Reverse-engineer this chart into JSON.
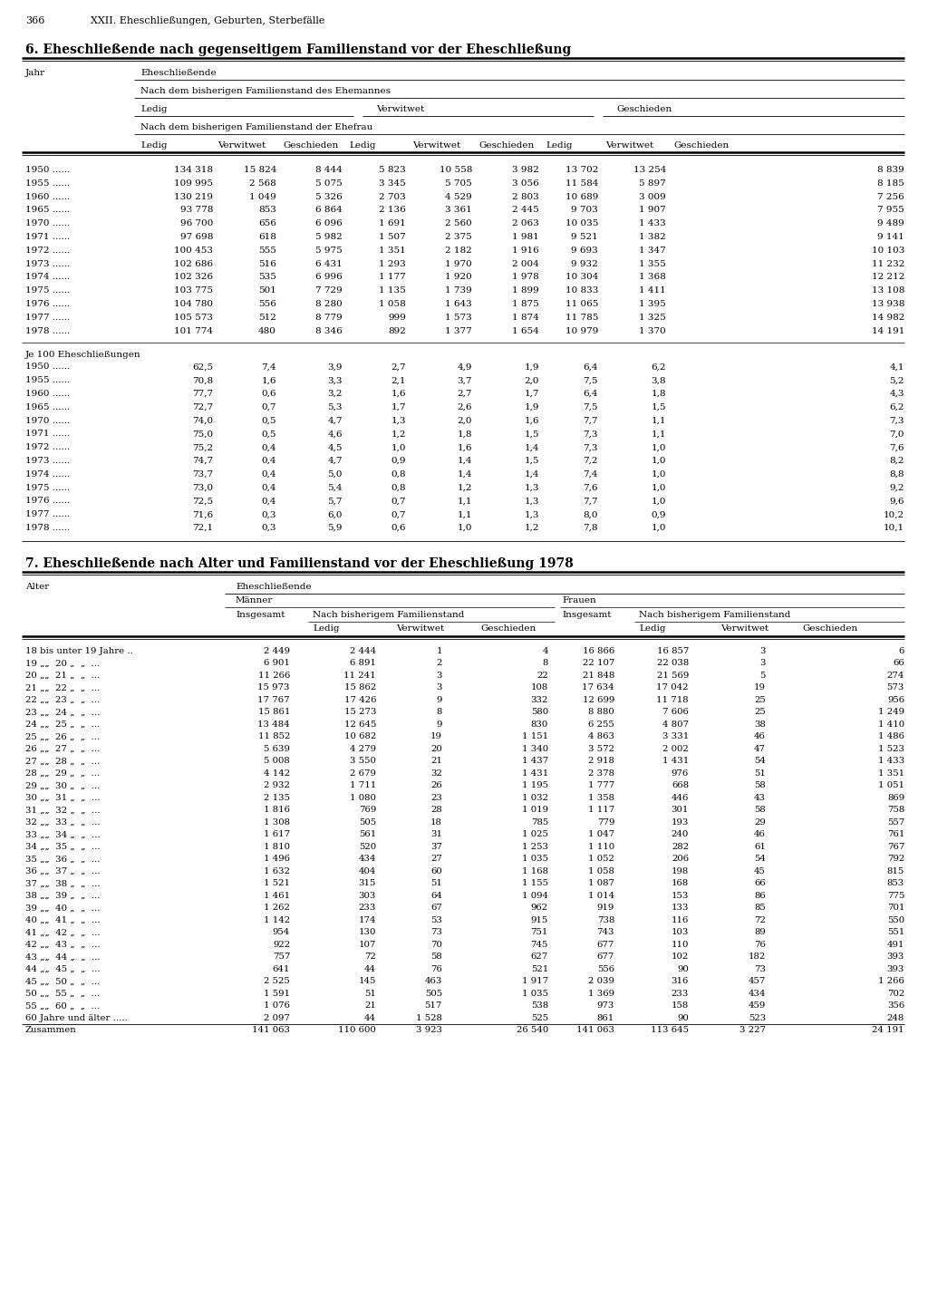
{
  "page_number": "366",
  "page_header": "XXII. Eheschließungen, Geburten, Sterbefälle",
  "table1_title": "6. Eheschließende nach gegenseitigem Familienstand vor der Eheschließung",
  "table1_years": [
    "1950",
    "1955",
    "1960",
    "1965",
    "1970",
    "1971",
    "1972",
    "1973",
    "1974",
    "1975",
    "1976",
    "1977",
    "1978"
  ],
  "table1_data": [
    [
      "134 318",
      "15 824",
      "8 444",
      "5 823",
      "10 558",
      "3 982",
      "13 702",
      "13 254",
      "8 839"
    ],
    [
      "109 995",
      "2 568",
      "5 075",
      "3 345",
      "5 705",
      "3 056",
      "11 584",
      "5 897",
      "8 185"
    ],
    [
      "130 219",
      "1 049",
      "5 326",
      "2 703",
      "4 529",
      "2 803",
      "10 689",
      "3 009",
      "7 256"
    ],
    [
      "93 778",
      "853",
      "6 864",
      "2 136",
      "3 361",
      "2 445",
      "9 703",
      "1 907",
      "7 955"
    ],
    [
      "96 700",
      "656",
      "6 096",
      "1 691",
      "2 560",
      "2 063",
      "10 035",
      "1 433",
      "9 489"
    ],
    [
      "97 698",
      "618",
      "5 982",
      "1 507",
      "2 375",
      "1 981",
      "9 521",
      "1 382",
      "9 141"
    ],
    [
      "100 453",
      "555",
      "5 975",
      "1 351",
      "2 182",
      "1 916",
      "9 693",
      "1 347",
      "10 103"
    ],
    [
      "102 686",
      "516",
      "6 431",
      "1 293",
      "1 970",
      "2 004",
      "9 932",
      "1 355",
      "11 232"
    ],
    [
      "102 326",
      "535",
      "6 996",
      "1 177",
      "1 920",
      "1 978",
      "10 304",
      "1 368",
      "12 212"
    ],
    [
      "103 775",
      "501",
      "7 729",
      "1 135",
      "1 739",
      "1 899",
      "10 833",
      "1 411",
      "13 108"
    ],
    [
      "104 780",
      "556",
      "8 280",
      "1 058",
      "1 643",
      "1 875",
      "11 065",
      "1 395",
      "13 938"
    ],
    [
      "105 573",
      "512",
      "8 779",
      "999",
      "1 573",
      "1 874",
      "11 785",
      "1 325",
      "14 982"
    ],
    [
      "101 774",
      "480",
      "8 346",
      "892",
      "1 377",
      "1 654",
      "10 979",
      "1 370",
      "14 191"
    ]
  ],
  "table1_je100_label": "Je 100 Eheschließungen",
  "table1_je100_data": [
    [
      "62,5",
      "7,4",
      "3,9",
      "2,7",
      "4,9",
      "1,9",
      "6,4",
      "6,2",
      "4,1"
    ],
    [
      "70,8",
      "1,6",
      "3,3",
      "2,1",
      "3,7",
      "2,0",
      "7,5",
      "3,8",
      "5,2"
    ],
    [
      "77,7",
      "0,6",
      "3,2",
      "1,6",
      "2,7",
      "1,7",
      "6,4",
      "1,8",
      "4,3"
    ],
    [
      "72,7",
      "0,7",
      "5,3",
      "1,7",
      "2,6",
      "1,9",
      "7,5",
      "1,5",
      "6,2"
    ],
    [
      "74,0",
      "0,5",
      "4,7",
      "1,3",
      "2,0",
      "1,6",
      "7,7",
      "1,1",
      "7,3"
    ],
    [
      "75,0",
      "0,5",
      "4,6",
      "1,2",
      "1,8",
      "1,5",
      "7,3",
      "1,1",
      "7,0"
    ],
    [
      "75,2",
      "0,4",
      "4,5",
      "1,0",
      "1,6",
      "1,4",
      "7,3",
      "1,0",
      "7,6"
    ],
    [
      "74,7",
      "0,4",
      "4,7",
      "0,9",
      "1,4",
      "1,5",
      "7,2",
      "1,0",
      "8,2"
    ],
    [
      "73,7",
      "0,4",
      "5,0",
      "0,8",
      "1,4",
      "1,4",
      "7,4",
      "1,0",
      "8,8"
    ],
    [
      "73,0",
      "0,4",
      "5,4",
      "0,8",
      "1,2",
      "1,3",
      "7,6",
      "1,0",
      "9,2"
    ],
    [
      "72,5",
      "0,4",
      "5,7",
      "0,7",
      "1,1",
      "1,3",
      "7,7",
      "1,0",
      "9,6"
    ],
    [
      "71,6",
      "0,3",
      "6,0",
      "0,7",
      "1,1",
      "1,3",
      "8,0",
      "0,9",
      "10,2"
    ],
    [
      "72,1",
      "0,3",
      "5,9",
      "0,6",
      "1,0",
      "1,2",
      "7,8",
      "1,0",
      "10,1"
    ]
  ],
  "table2_title": "7. Eheschließende nach Alter und Familienstand vor der Eheschließung 1978",
  "table2_age_rows": [
    [
      "18 bis unter 19 Jahre ..",
      "2 449",
      "2 444",
      "1",
      "4",
      "16 866",
      "16 857",
      "3",
      "6"
    ],
    [
      "19 „„  20 „  „  ...",
      "6 901",
      "6 891",
      "2",
      "8",
      "22 107",
      "22 038",
      "3",
      "66"
    ],
    [
      "20 „„  21 „  „  ...",
      "11 266",
      "11 241",
      "3",
      "22",
      "21 848",
      "21 569",
      "5",
      "274"
    ],
    [
      "21 „„  22 „  „  ...",
      "15 973",
      "15 862",
      "3",
      "108",
      "17 634",
      "17 042",
      "19",
      "573"
    ],
    [
      "22 „„  23 „  „  ...",
      "17 767",
      "17 426",
      "9",
      "332",
      "12 699",
      "11 718",
      "25",
      "956"
    ],
    [
      "23 „„  24 „  „  ...",
      "15 861",
      "15 273",
      "8",
      "580",
      "8 880",
      "7 606",
      "25",
      "1 249"
    ],
    [
      "24 „„  25 „  „  ...",
      "13 484",
      "12 645",
      "9",
      "830",
      "6 255",
      "4 807",
      "38",
      "1 410"
    ],
    [
      "25 „„  26 „  „  ...",
      "11 852",
      "10 682",
      "19",
      "1 151",
      "4 863",
      "3 331",
      "46",
      "1 486"
    ],
    [
      "26 „„  27 „  „  ...",
      "5 639",
      "4 279",
      "20",
      "1 340",
      "3 572",
      "2 002",
      "47",
      "1 523"
    ],
    [
      "27 „„  28 „  „  ...",
      "5 008",
      "3 550",
      "21",
      "1 437",
      "2 918",
      "1 431",
      "54",
      "1 433"
    ],
    [
      "28 „„  29 „  „  ...",
      "4 142",
      "2 679",
      "32",
      "1 431",
      "2 378",
      "976",
      "51",
      "1 351"
    ],
    [
      "29 „„  30 „  „  ...",
      "2 932",
      "1 711",
      "26",
      "1 195",
      "1 777",
      "668",
      "58",
      "1 051"
    ],
    [
      "30 „„  31 „  „  ...",
      "2 135",
      "1 080",
      "23",
      "1 032",
      "1 358",
      "446",
      "43",
      "869"
    ],
    [
      "31 „„  32 „  „  ...",
      "1 816",
      "769",
      "28",
      "1 019",
      "1 117",
      "301",
      "58",
      "758"
    ],
    [
      "32 „„  33 „  „  ...",
      "1 308",
      "505",
      "18",
      "785",
      "779",
      "193",
      "29",
      "557"
    ],
    [
      "33 „„  34 „  „  ...",
      "1 617",
      "561",
      "31",
      "1 025",
      "1 047",
      "240",
      "46",
      "761"
    ],
    [
      "34 „„  35 „  „  ...",
      "1 810",
      "520",
      "37",
      "1 253",
      "1 110",
      "282",
      "61",
      "767"
    ],
    [
      "35 „„  36 „  „  ...",
      "1 496",
      "434",
      "27",
      "1 035",
      "1 052",
      "206",
      "54",
      "792"
    ],
    [
      "36 „„  37 „  „  ...",
      "1 632",
      "404",
      "60",
      "1 168",
      "1 058",
      "198",
      "45",
      "815"
    ],
    [
      "37 „„  38 „  „  ...",
      "1 521",
      "315",
      "51",
      "1 155",
      "1 087",
      "168",
      "66",
      "853"
    ],
    [
      "38 „„  39 „  „  ...",
      "1 461",
      "303",
      "64",
      "1 094",
      "1 014",
      "153",
      "86",
      "775"
    ],
    [
      "39 „„  40 „  „  ...",
      "1 262",
      "233",
      "67",
      "962",
      "919",
      "133",
      "85",
      "701"
    ],
    [
      "40 „„  41 „  „  ...",
      "1 142",
      "174",
      "53",
      "915",
      "738",
      "116",
      "72",
      "550"
    ],
    [
      "41 „„  42 „  „  ...",
      "954",
      "130",
      "73",
      "751",
      "743",
      "103",
      "89",
      "551"
    ],
    [
      "42 „„  43 „  „  ...",
      "922",
      "107",
      "70",
      "745",
      "677",
      "110",
      "76",
      "491"
    ],
    [
      "43 „„  44 „  „  ...",
      "757",
      "72",
      "58",
      "627",
      "677",
      "102",
      "182",
      "393"
    ],
    [
      "44 „„  45 „  „  ...",
      "641",
      "44",
      "76",
      "521",
      "556",
      "90",
      "73",
      "393"
    ],
    [
      "45 „„  50 „  „  ...",
      "2 525",
      "145",
      "463",
      "1 917",
      "2 039",
      "316",
      "457",
      "1 266"
    ],
    [
      "50 „„  55 „  „  ...",
      "1 591",
      "51",
      "505",
      "1 035",
      "1 369",
      "233",
      "434",
      "702"
    ],
    [
      "55 „„  60 „  „  ...",
      "1 076",
      "21",
      "517",
      "538",
      "973",
      "158",
      "459",
      "356"
    ],
    [
      "60 Jahre und älter .....",
      "2 097",
      "44",
      "1 528",
      "525",
      "861",
      "90",
      "523",
      "248"
    ],
    [
      "Zusammen",
      "141 063",
      "110 600",
      "3 923",
      "26 540",
      "141 063",
      "113 645",
      "3 227",
      "24 191"
    ]
  ]
}
